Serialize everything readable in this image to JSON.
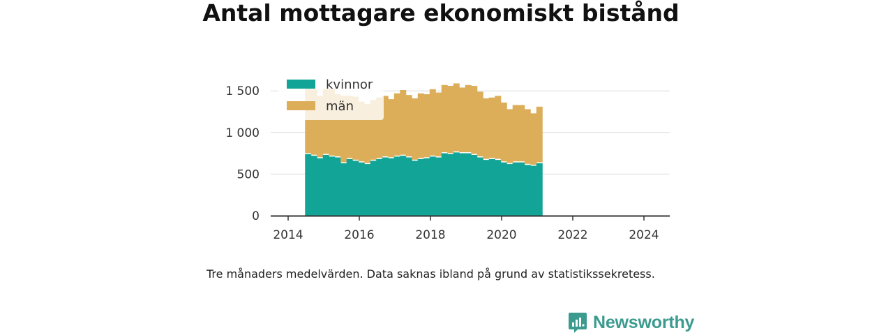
{
  "chart_data": {
    "type": "bar",
    "stacked": true,
    "title": "Antal mottagare ekonomiskt bistånd",
    "caption": "Tre månaders medelvärden. Data saknas ibland på grund av statistikssekretess.",
    "x_start": "2014-04",
    "interval_months": 2,
    "x_ticks": [
      "2014",
      "2016",
      "2018",
      "2020",
      "2022",
      "2024"
    ],
    "y_ticks": [
      "0",
      "500",
      "1 000",
      "1 500"
    ],
    "ylim": [
      0,
      1700
    ],
    "legend_position": "top-left",
    "series": [
      {
        "name": "kvinnor",
        "color": "#12a496",
        "values": [
          740,
          720,
          690,
          730,
          710,
          700,
          630,
          680,
          660,
          640,
          620,
          660,
          680,
          700,
          690,
          710,
          720,
          700,
          660,
          680,
          690,
          710,
          700,
          750,
          740,
          760,
          750,
          750,
          730,
          700,
          670,
          680,
          670,
          640,
          620,
          640,
          640,
          610,
          600,
          630
        ]
      },
      {
        "name": "män",
        "color": "#dcae5a",
        "values": [
          790,
          800,
          750,
          790,
          810,
          760,
          810,
          760,
          770,
          730,
          720,
          730,
          740,
          740,
          710,
          760,
          790,
          750,
          750,
          790,
          770,
          810,
          780,
          820,
          820,
          830,
          790,
          820,
          830,
          790,
          740,
          740,
          770,
          720,
          660,
          690,
          690,
          670,
          630,
          680
        ]
      }
    ]
  },
  "brand": {
    "name": "Newsworthy",
    "color": "#3b9b8f"
  }
}
